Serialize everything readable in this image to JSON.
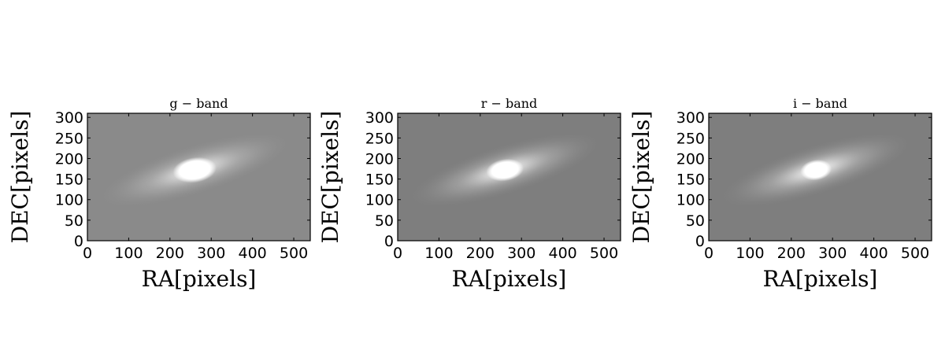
{
  "figure": {
    "panels": [
      {
        "title": "g − band",
        "xlabel": "RA[pixels]",
        "ylabel": "DEC[pixels]",
        "background": "#8a8a8a",
        "core_rx": 22,
        "core_ry": 12
      },
      {
        "title": "r − band",
        "xlabel": "RA[pixels]",
        "ylabel": "DEC[pixels]",
        "background": "#7e7e7e",
        "core_rx": 18,
        "core_ry": 10
      },
      {
        "title": "i − band",
        "xlabel": "RA[pixels]",
        "ylabel": "DEC[pixels]",
        "background": "#7e7e7e",
        "core_rx": 14,
        "core_ry": 9
      }
    ],
    "x_ticks": [
      "0",
      "100",
      "200",
      "300",
      "400",
      "500"
    ],
    "y_ticks": [
      "0",
      "50",
      "100",
      "150",
      "200",
      "250",
      "300"
    ],
    "xlim": [
      0,
      540
    ],
    "ylim": [
      0,
      310
    ],
    "galaxy_center": [
      260,
      172
    ],
    "galaxy_angle_deg": 17
  }
}
